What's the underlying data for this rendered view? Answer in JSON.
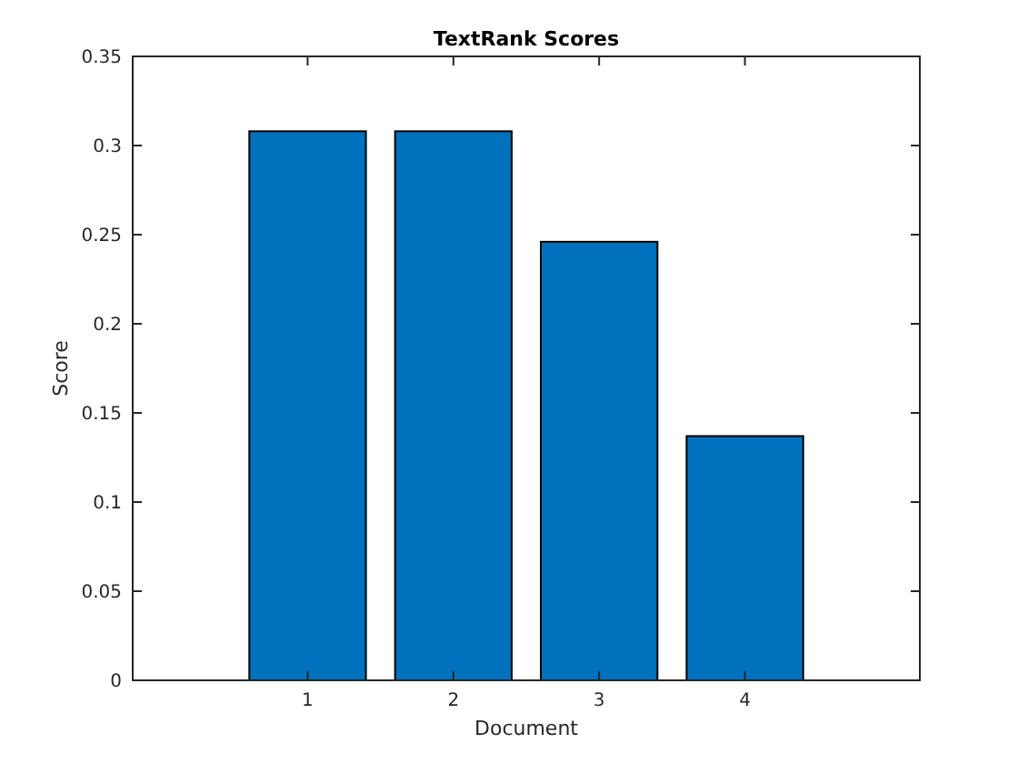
{
  "chart_data": {
    "type": "bar",
    "title": "TextRank Scores",
    "xlabel": "Document",
    "ylabel": "Score",
    "x": [
      1,
      2,
      3,
      4
    ],
    "values": [
      0.308,
      0.308,
      0.246,
      0.137
    ],
    "color": "#0072bd",
    "xlim": [
      -0.2,
      5.2
    ],
    "xticks": [
      1,
      2,
      3,
      4
    ],
    "ylim": [
      0,
      0.35
    ],
    "yticks": [
      0,
      0.05,
      0.1,
      0.15,
      0.2,
      0.25,
      0.3,
      0.35
    ]
  }
}
